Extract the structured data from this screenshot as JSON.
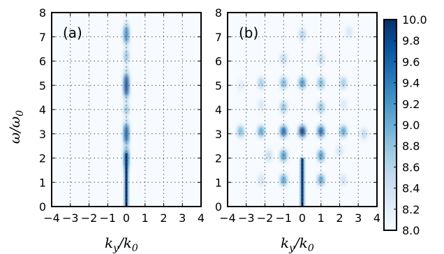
{
  "chart_data": [
    {
      "type": "heatmap",
      "panel_label": "(a)",
      "xlabel": {
        "main": "k",
        "sub_y": "y",
        "slash": "/",
        "main2": "k",
        "sub_0": "0"
      },
      "ylabel": {
        "main": "ω",
        "slash": "/",
        "main2": "ω",
        "sub_0": "0"
      },
      "xlim": [
        -4,
        4
      ],
      "ylim": [
        0,
        8
      ],
      "xticks": [
        "−4",
        "−3",
        "−2",
        "−1",
        "0",
        "1",
        "2",
        "3",
        "4"
      ],
      "yticks": [
        "0",
        "1",
        "2",
        "3",
        "4",
        "5",
        "6",
        "7",
        "8"
      ],
      "grid": true,
      "hotspots": [
        {
          "kx": 0.0,
          "w": 7.1,
          "level": 9.4,
          "sx": 0.05,
          "sy": 0.22
        },
        {
          "kx": 0.0,
          "w": 6.2,
          "level": 8.9,
          "sx": 0.05,
          "sy": 0.15
        },
        {
          "kx": 0.0,
          "w": 5.0,
          "level": 9.8,
          "sx": 0.06,
          "sy": 0.28
        },
        {
          "kx": 0.0,
          "w": 4.0,
          "level": 8.9,
          "sx": 0.05,
          "sy": 0.12
        },
        {
          "kx": 0.0,
          "w": 3.0,
          "level": 9.7,
          "sx": 0.06,
          "sy": 0.25
        },
        {
          "kx": 0.0,
          "w": 2.0,
          "level": 9.4,
          "sx": 0.06,
          "sy": 0.25
        }
      ],
      "streaks": [
        {
          "kx": 0.0,
          "w0": 0.0,
          "w1": 2.2,
          "level": 10.0
        }
      ]
    },
    {
      "type": "heatmap",
      "panel_label": "(b)",
      "xlabel": {
        "main": "k",
        "sub_y": "y",
        "slash": "/",
        "main2": "k",
        "sub_0": "0"
      },
      "xlim": [
        -4,
        4
      ],
      "ylim": [
        0,
        8
      ],
      "xticks": [
        "−4",
        "−3",
        "−2",
        "−1",
        "0",
        "1",
        "2",
        "3",
        "4"
      ],
      "yticks": [
        "0",
        "1",
        "2",
        "3",
        "4",
        "5",
        "6",
        "7",
        "8"
      ],
      "grid": true,
      "hotspots": [
        {
          "kx": 0.0,
          "w": 7.1,
          "level": 8.7
        },
        {
          "kx": 2.5,
          "w": 7.2,
          "level": 8.4
        },
        {
          "kx": -1.0,
          "w": 6.1,
          "level": 8.6
        },
        {
          "kx": 1.0,
          "w": 6.1,
          "level": 8.6
        },
        {
          "kx": -2.2,
          "w": 5.1,
          "level": 8.8
        },
        {
          "kx": -1.0,
          "w": 5.1,
          "level": 9.0
        },
        {
          "kx": 0.0,
          "w": 5.1,
          "level": 9.3
        },
        {
          "kx": 1.0,
          "w": 5.1,
          "level": 9.0
        },
        {
          "kx": 2.2,
          "w": 5.1,
          "level": 8.8
        },
        {
          "kx": -3.3,
          "w": 5.0,
          "level": 8.3
        },
        {
          "kx": -1.0,
          "w": 4.1,
          "level": 8.9
        },
        {
          "kx": 1.0,
          "w": 4.1,
          "level": 8.9
        },
        {
          "kx": -2.2,
          "w": 4.2,
          "level": 8.4
        },
        {
          "kx": 2.2,
          "w": 4.2,
          "level": 8.4
        },
        {
          "kx": -3.3,
          "w": 3.1,
          "level": 9.0
        },
        {
          "kx": -2.2,
          "w": 3.1,
          "level": 9.2
        },
        {
          "kx": -1.0,
          "w": 3.1,
          "level": 9.6
        },
        {
          "kx": 0.0,
          "w": 3.1,
          "level": 9.9
        },
        {
          "kx": 1.0,
          "w": 3.1,
          "level": 9.6
        },
        {
          "kx": 2.2,
          "w": 3.1,
          "level": 9.2
        },
        {
          "kx": 3.3,
          "w": 3.0,
          "level": 8.6
        },
        {
          "kx": -1.0,
          "w": 2.1,
          "level": 9.3
        },
        {
          "kx": 1.0,
          "w": 2.1,
          "level": 9.3
        },
        {
          "kx": -1.8,
          "w": 2.1,
          "level": 8.6
        },
        {
          "kx": 2.0,
          "w": 2.3,
          "level": 8.5
        },
        {
          "kx": -1.0,
          "w": 1.1,
          "level": 9.2
        },
        {
          "kx": 1.0,
          "w": 1.1,
          "level": 9.2
        },
        {
          "kx": -2.2,
          "w": 1.1,
          "level": 8.5
        },
        {
          "kx": 2.2,
          "w": 1.1,
          "level": 8.5
        }
      ],
      "streaks": [
        {
          "kx": 0.0,
          "w0": 0.0,
          "w1": 2.0,
          "level": 10.0
        }
      ]
    }
  ],
  "colorbar": {
    "range": [
      8.0,
      10.0
    ],
    "ticks": [
      "8.0",
      "8.2",
      "8.4",
      "8.6",
      "8.8",
      "9.0",
      "9.2",
      "9.4",
      "9.6",
      "9.8",
      "10.0"
    ],
    "colors": [
      "#f7fbff",
      "#deebf7",
      "#c6dbef",
      "#9ecae1",
      "#6baed6",
      "#4292c6",
      "#2171b5",
      "#08519c",
      "#08306b"
    ]
  }
}
